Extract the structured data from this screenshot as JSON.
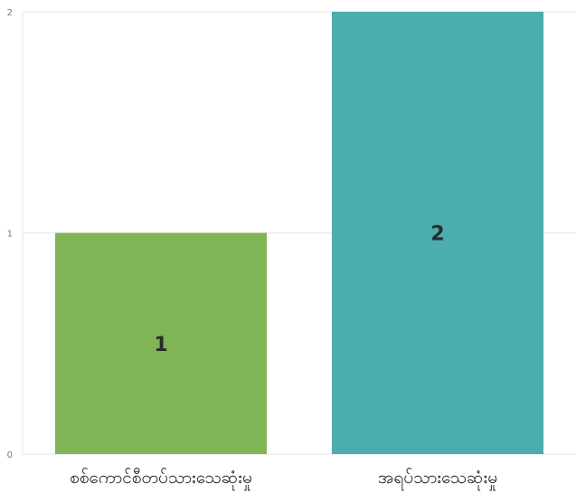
{
  "chart_data": {
    "type": "bar",
    "categories": [
      "စစ်ကောင်စီတပ်သားသေဆုံးမှု",
      "အရပ်သားသေဆုံးမှု"
    ],
    "values": [
      1,
      2
    ],
    "data_labels": [
      "1",
      "2"
    ],
    "colors": [
      "#80b556",
      "#4badad"
    ],
    "ylim": [
      0,
      2
    ],
    "yticks": [
      0,
      1,
      2
    ],
    "ytick_labels": [
      "0",
      "1",
      "2"
    ],
    "grid": true,
    "legend": "none",
    "title": "",
    "xlabel": "",
    "ylabel": ""
  }
}
